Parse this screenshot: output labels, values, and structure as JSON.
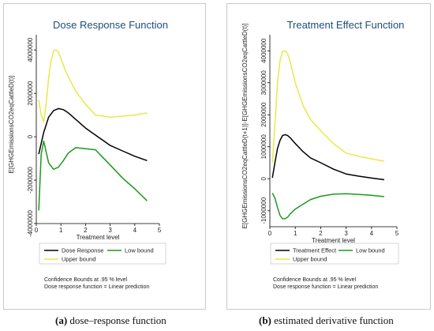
{
  "chart_data": [
    {
      "type": "line",
      "title": "Dose Response Function",
      "xlabel": "Treatment level",
      "ylabel": "E[GHGEmissionsCO2eqCattleD(t)]",
      "xlim": [
        0,
        5
      ],
      "ylim": [
        -4000000,
        4700000
      ],
      "x_ticks": [
        0,
        1,
        2,
        3,
        4,
        5
      ],
      "y_ticks": [
        -4000000,
        -2000000,
        0,
        2000000,
        4000000
      ],
      "y_tick_labels": [
        "-4000000",
        "-2000000",
        "0",
        "2000000",
        "4000000"
      ],
      "grid": false,
      "series": [
        {
          "name": "Dose Response",
          "color": "#000000",
          "x": [
            0.1,
            0.3,
            0.5,
            0.7,
            0.9,
            1.1,
            1.3,
            1.6,
            2.0,
            2.5,
            3.0,
            3.5,
            4.0,
            4.5
          ],
          "y": [
            -800000,
            200000,
            900000,
            1200000,
            1300000,
            1250000,
            1100000,
            800000,
            400000,
            0,
            -400000,
            -650000,
            -900000,
            -1100000
          ]
        },
        {
          "name": "Low bound",
          "color": "#1a9a1a",
          "x": [
            0.1,
            0.2,
            0.3,
            0.4,
            0.5,
            0.7,
            0.9,
            1.1,
            1.3,
            1.6,
            2.0,
            2.4,
            3.0,
            3.5,
            4.0,
            4.5
          ],
          "y": [
            -3400000,
            -800000,
            -200000,
            -700000,
            -1200000,
            -1500000,
            -1400000,
            -1100000,
            -750000,
            -500000,
            -550000,
            -600000,
            -1300000,
            -1900000,
            -2400000,
            -2950000
          ]
        },
        {
          "name": "Upper bound",
          "color": "#e8e84a",
          "x": [
            0.1,
            0.2,
            0.3,
            0.4,
            0.5,
            0.6,
            0.7,
            0.8,
            0.9,
            1.0,
            1.2,
            1.6,
            2.0,
            2.4,
            3.0,
            3.5,
            4.0,
            4.5
          ],
          "y": [
            1700000,
            1000000,
            700000,
            1500000,
            2700000,
            3500000,
            3950000,
            4000000,
            3900000,
            3600000,
            3000000,
            2100000,
            1500000,
            1000000,
            900000,
            950000,
            1000000,
            1100000
          ]
        }
      ],
      "legend": {
        "placement": "bottom",
        "entries": [
          {
            "label": "Dose Response",
            "color": "#000000"
          },
          {
            "label": "Low bound",
            "color": "#1a9a1a"
          },
          {
            "label": "Upper bound",
            "color": "#e8e84a"
          }
        ]
      },
      "notes": [
        "Confidence Bounds at .95 % level",
        "Dose response function = Linear prediction"
      ],
      "caption_tag": "(a)",
      "caption_text": " dose–response function"
    },
    {
      "type": "line",
      "title": "Treatment Effect Function",
      "xlabel": "Treatment level",
      "ylabel": "E[GHGEmissionsCO2eqCattleD(t+1)]-E[GHGEmissionsCO2eqCattleD(t)]",
      "xlim": [
        0,
        5
      ],
      "ylim": [
        -1500000,
        4500000
      ],
      "x_ticks": [
        0,
        1,
        2,
        3,
        4,
        5
      ],
      "y_ticks": [
        -1000000,
        0,
        1000000,
        2000000,
        3000000,
        4000000
      ],
      "y_tick_labels": [
        "-1000000",
        "0",
        "1000000",
        "2000000",
        "3000000",
        "4000000"
      ],
      "grid": false,
      "series": [
        {
          "name": "Treatment Effect",
          "color": "#000000",
          "x": [
            0.1,
            0.2,
            0.3,
            0.4,
            0.5,
            0.6,
            0.7,
            0.8,
            1.0,
            1.3,
            1.6,
            2.0,
            2.5,
            3.0,
            3.5,
            4.0,
            4.5
          ],
          "y": [
            30000,
            500000,
            950000,
            1200000,
            1350000,
            1380000,
            1350000,
            1280000,
            1100000,
            850000,
            650000,
            500000,
            300000,
            150000,
            80000,
            20000,
            -30000
          ]
        },
        {
          "name": "Low bound",
          "color": "#1a9a1a",
          "x": [
            0.1,
            0.2,
            0.3,
            0.4,
            0.5,
            0.6,
            0.7,
            0.8,
            1.0,
            1.3,
            1.6,
            2.0,
            2.5,
            3.0,
            3.5,
            4.0,
            4.5
          ],
          "y": [
            -450000,
            -600000,
            -900000,
            -1150000,
            -1250000,
            -1250000,
            -1200000,
            -1100000,
            -950000,
            -800000,
            -650000,
            -550000,
            -480000,
            -470000,
            -490000,
            -520000,
            -560000
          ]
        },
        {
          "name": "Upper bound",
          "color": "#e8e84a",
          "x": [
            0.1,
            0.2,
            0.3,
            0.4,
            0.5,
            0.6,
            0.7,
            0.8,
            1.0,
            1.3,
            1.6,
            2.0,
            2.5,
            3.0,
            3.5,
            4.0,
            4.5
          ],
          "y": [
            500000,
            1700000,
            3000000,
            3700000,
            3980000,
            4000000,
            3900000,
            3650000,
            3000000,
            2300000,
            1850000,
            1500000,
            1100000,
            800000,
            700000,
            620000,
            550000
          ]
        }
      ],
      "legend": {
        "placement": "bottom",
        "entries": [
          {
            "label": "Treatment Effect",
            "color": "#000000"
          },
          {
            "label": "Low bound",
            "color": "#1a9a1a"
          },
          {
            "label": "Upper bound",
            "color": "#e8e84a"
          }
        ]
      },
      "notes": [
        "Confidence Bounds at .95 % level",
        "Dose response function = Linear prediction"
      ],
      "caption_tag": "(b)",
      "caption_text": " estimated derivative function"
    }
  ]
}
